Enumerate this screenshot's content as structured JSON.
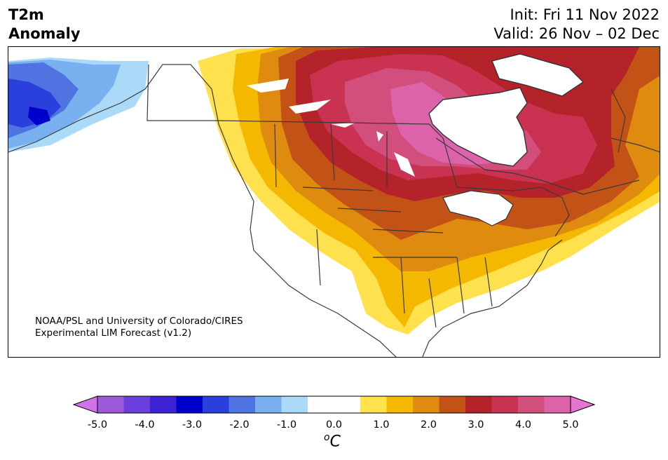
{
  "header": {
    "title_line1": "T2m",
    "title_line2": "Anomaly",
    "init": "Init: Fri 11 Nov 2022",
    "valid": "Valid: 26 Nov – 02 Dec"
  },
  "map": {
    "credit_line1": "NOAA/PSL and University of Colorado/CIRES",
    "credit_line2": "Experimental LIM Forecast (v1.2)"
  },
  "colorbar": {
    "colors": [
      "#cf73e6",
      "#9e59db",
      "#6b3fdb",
      "#3d22d6",
      "#0000cc",
      "#2a3fdb",
      "#4f73e0",
      "#79b0f0",
      "#aadaf8",
      "#ffffff",
      "#ffffff",
      "#ffe04d",
      "#f5b800",
      "#df8b10",
      "#c35217",
      "#b5232a",
      "#c93351",
      "#d24e7d",
      "#dc62aa",
      "#e673d0"
    ],
    "ticks": [
      "-5.0",
      "-4.0",
      "-3.0",
      "-2.0",
      "-1.0",
      "0.0",
      "1.0",
      "2.0",
      "3.0",
      "4.0",
      "5.0"
    ],
    "unit_sup": "o",
    "unit": "C"
  }
}
